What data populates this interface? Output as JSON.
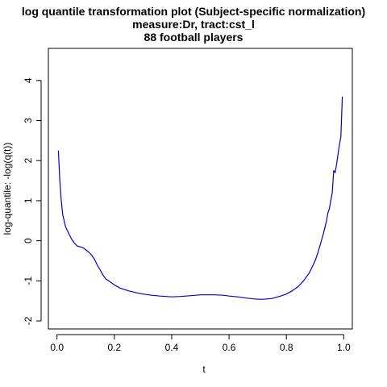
{
  "chart_data": {
    "type": "line",
    "title_lines": [
      "log quantile transformation plot (Subject-specific normalization)",
      "measure:Dr, tract:cst_l",
      "88 football players"
    ],
    "xlabel": "t",
    "ylabel": "log-quantile: -log(q(t))",
    "xlim": [
      -0.03,
      1.03
    ],
    "ylim": [
      -2.2,
      4.8
    ],
    "x_ticks": [
      0.0,
      0.2,
      0.4,
      0.6,
      0.8,
      1.0
    ],
    "x_tick_labels": [
      "0.0",
      "0.2",
      "0.4",
      "0.6",
      "0.8",
      "1.0"
    ],
    "y_ticks": [
      -2,
      -1,
      0,
      1,
      2,
      3,
      4
    ],
    "y_tick_labels": [
      "-2",
      "-1",
      "0",
      "1",
      "2",
      "3",
      "4"
    ],
    "grid": false,
    "series": [
      {
        "color": "#0000cc",
        "x": [
          0.005,
          0.01,
          0.015,
          0.02,
          0.025,
          0.03,
          0.04,
          0.05,
          0.06,
          0.07,
          0.08,
          0.09,
          0.1,
          0.11,
          0.12,
          0.13,
          0.14,
          0.15,
          0.16,
          0.17,
          0.18,
          0.2,
          0.22,
          0.25,
          0.28,
          0.3,
          0.33,
          0.36,
          0.4,
          0.43,
          0.45,
          0.5,
          0.55,
          0.58,
          0.6,
          0.63,
          0.66,
          0.7,
          0.72,
          0.75,
          0.78,
          0.8,
          0.82,
          0.84,
          0.86,
          0.88,
          0.9,
          0.91,
          0.92,
          0.93,
          0.94,
          0.945,
          0.95,
          0.955,
          0.96,
          0.965,
          0.97,
          0.975,
          0.98,
          0.985,
          0.99,
          0.995
        ],
        "values": [
          2.25,
          1.5,
          1.0,
          0.65,
          0.5,
          0.35,
          0.2,
          0.05,
          -0.05,
          -0.13,
          -0.15,
          -0.17,
          -0.22,
          -0.28,
          -0.35,
          -0.45,
          -0.6,
          -0.72,
          -0.85,
          -0.95,
          -1.0,
          -1.1,
          -1.18,
          -1.25,
          -1.3,
          -1.33,
          -1.36,
          -1.38,
          -1.4,
          -1.39,
          -1.38,
          -1.35,
          -1.35,
          -1.36,
          -1.38,
          -1.4,
          -1.43,
          -1.46,
          -1.46,
          -1.44,
          -1.38,
          -1.33,
          -1.25,
          -1.15,
          -1.0,
          -0.8,
          -0.5,
          -0.3,
          -0.05,
          0.2,
          0.5,
          0.7,
          0.8,
          1.0,
          1.2,
          1.75,
          1.7,
          1.9,
          2.15,
          2.4,
          2.6,
          3.6
        ]
      }
    ]
  }
}
